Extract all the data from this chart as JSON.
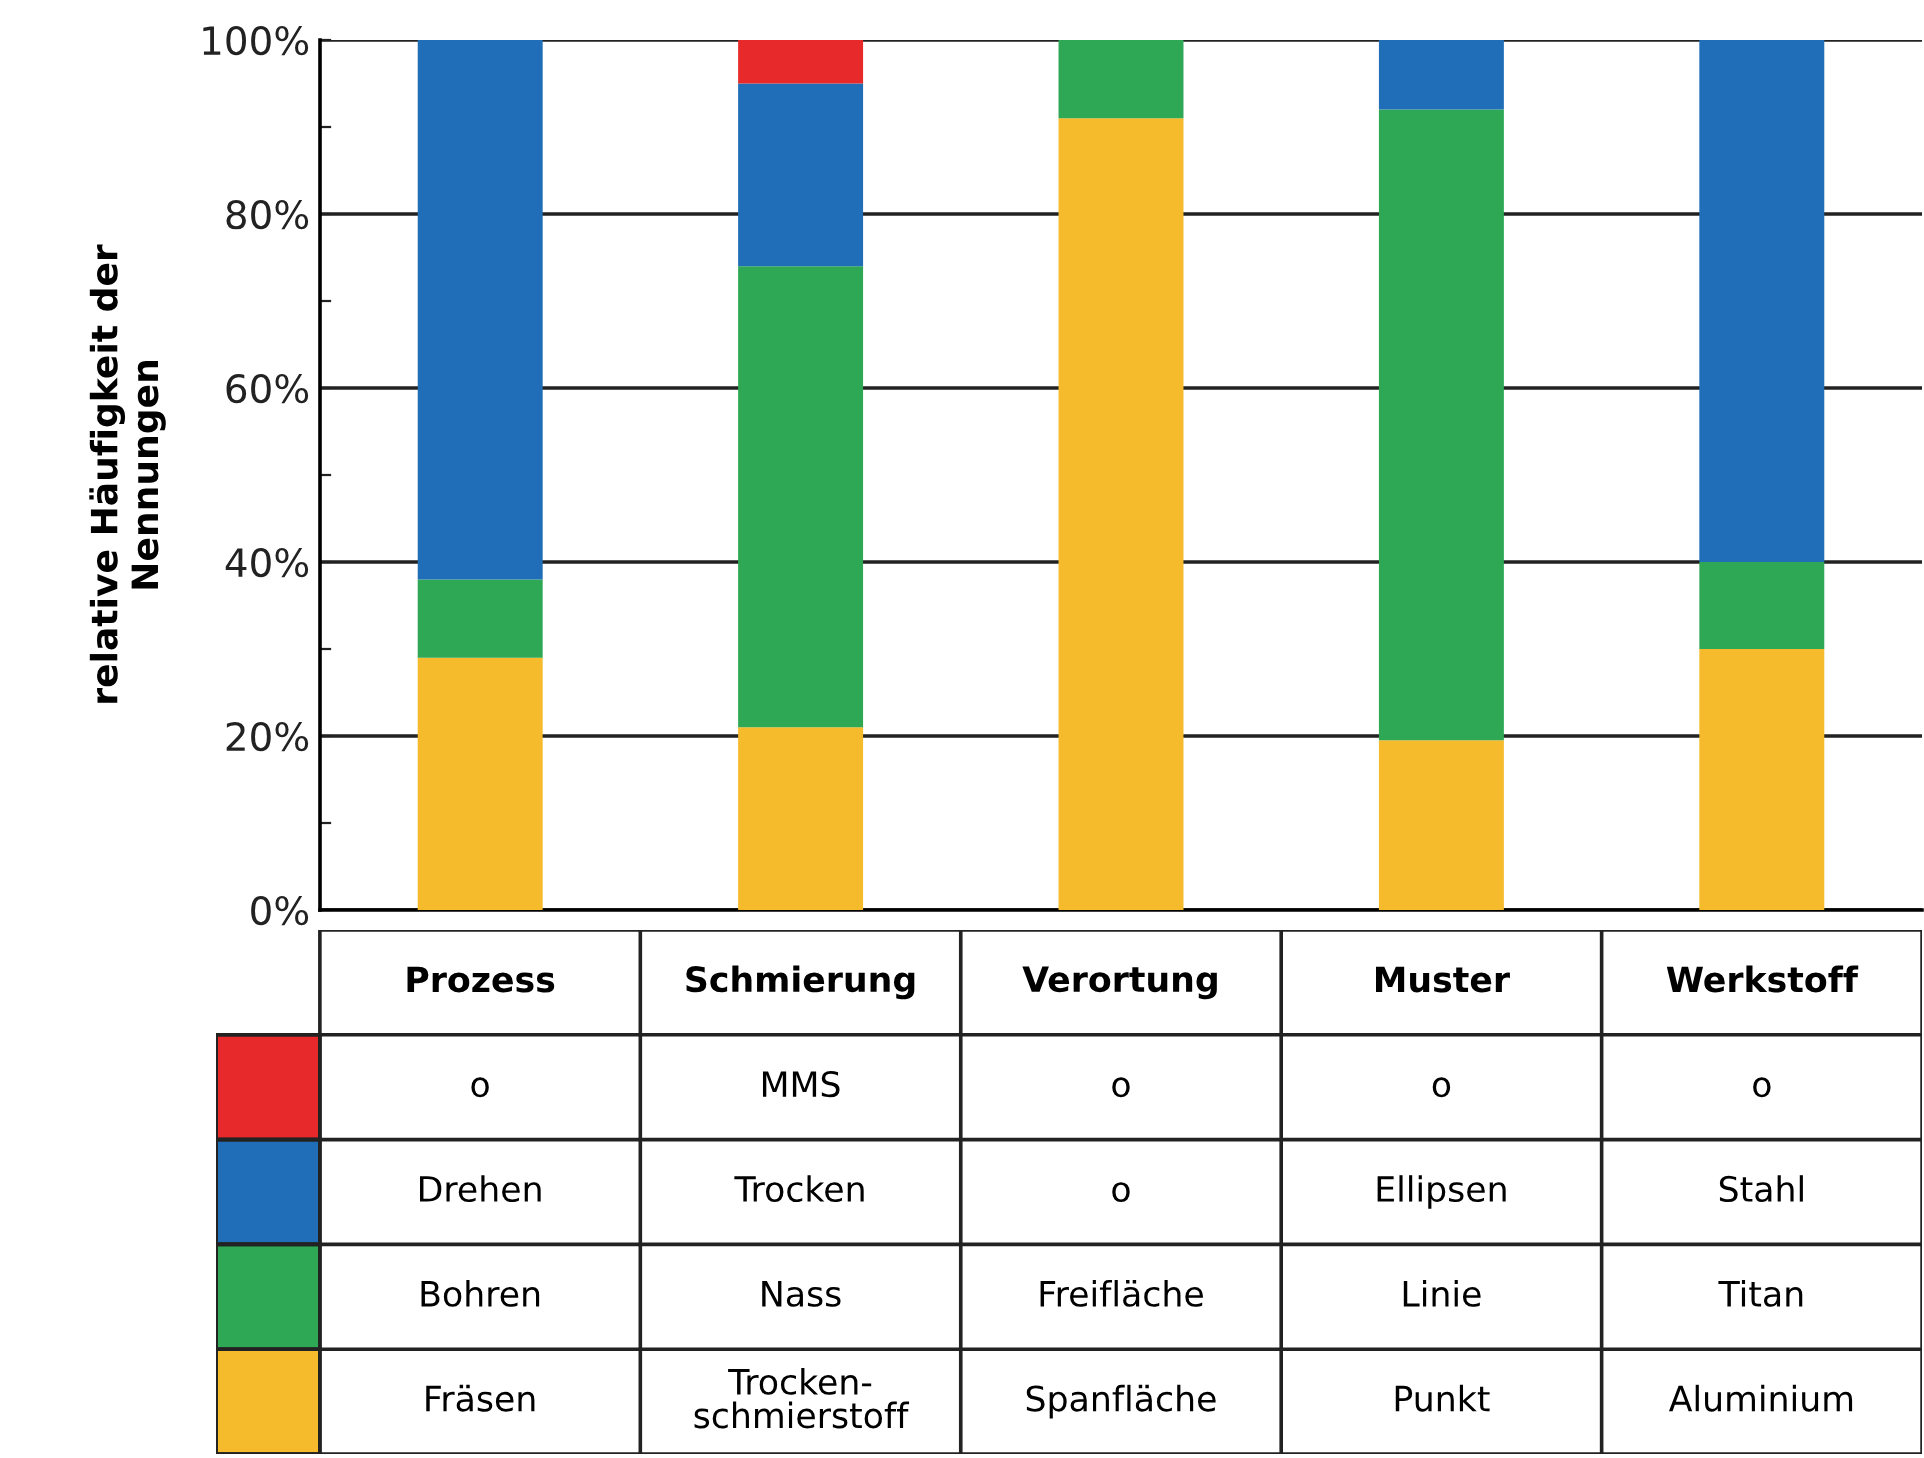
{
  "chart_data": {
    "type": "bar",
    "stacked": true,
    "categories": [
      "Prozess",
      "Schmierung",
      "Verortung",
      "Muster",
      "Werkstoff"
    ],
    "ylabel": "relative Häufigkeit der\nNennungen",
    "ylim": [
      0,
      100
    ],
    "yticks": [
      {
        "value": 0,
        "label": "0%"
      },
      {
        "value": 10,
        "label": null
      },
      {
        "value": 20,
        "label": "20%"
      },
      {
        "value": 30,
        "label": null
      },
      {
        "value": 40,
        "label": "40%"
      },
      {
        "value": 50,
        "label": null
      },
      {
        "value": 60,
        "label": "60%"
      },
      {
        "value": 70,
        "label": null
      },
      {
        "value": 80,
        "label": "80%"
      },
      {
        "value": 90,
        "label": null
      },
      {
        "value": 100,
        "label": "100%"
      }
    ],
    "grid": "y",
    "series": [
      {
        "color": "#f5bb2c",
        "values": [
          29,
          21,
          91,
          19.5,
          30
        ],
        "value_labels": [
          "Fräsen",
          "Trocken-\nschmierstoff",
          "Spanfläche",
          "Punkt",
          "Aluminium"
        ]
      },
      {
        "color": "#2ea855",
        "values": [
          9,
          53,
          9,
          72.5,
          10
        ],
        "value_labels": [
          "Bohren",
          "Nass",
          "Freifläche",
          "Linie",
          "Titan"
        ]
      },
      {
        "color": "#1f6eb7",
        "values": [
          62,
          21,
          0,
          8,
          60
        ],
        "value_labels": [
          "Drehen",
          "Trocken",
          "o",
          "Ellipsen",
          "Stahl"
        ]
      },
      {
        "color": "#e8292b",
        "values": [
          0,
          5,
          0,
          0,
          0
        ],
        "value_labels": [
          "o",
          "MMS",
          "o",
          "o",
          "o"
        ]
      }
    ]
  }
}
